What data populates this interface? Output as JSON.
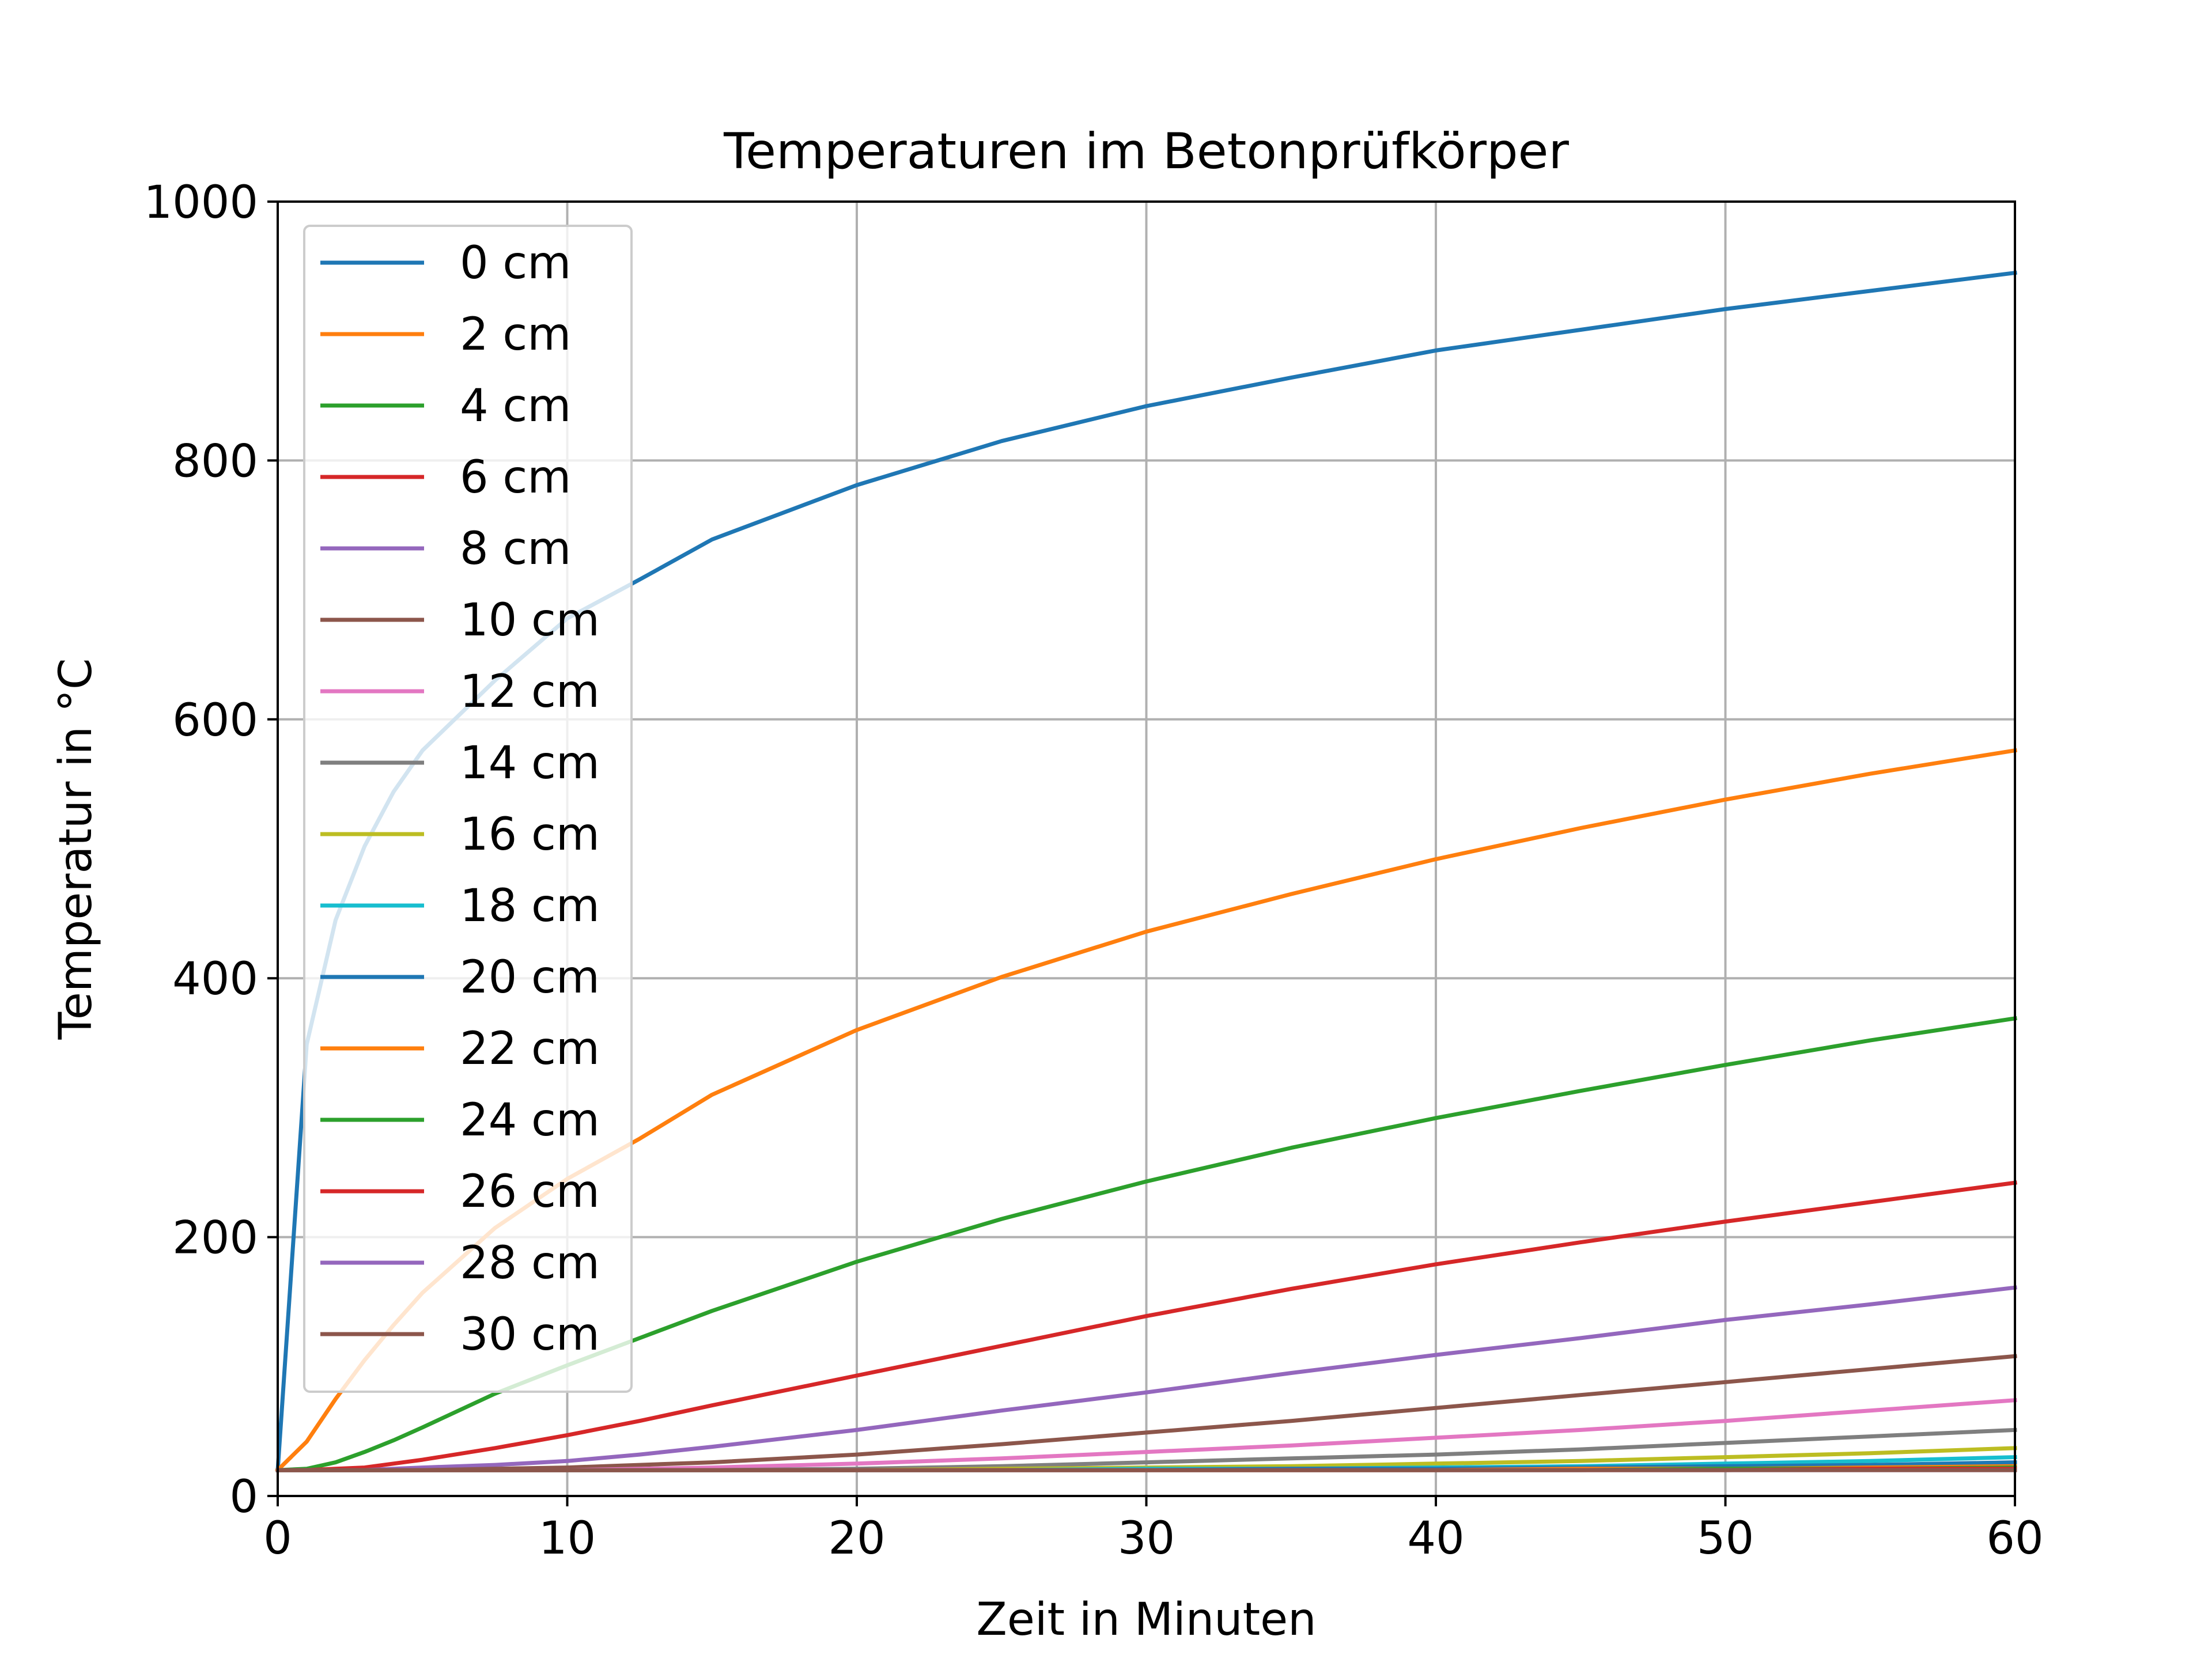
{
  "chart_data": {
    "type": "line",
    "title": "Temperaturen im Betonprüfkörper",
    "xlabel": "Zeit in Minuten",
    "ylabel": "Temperatur in °C",
    "xlim": [
      0,
      60
    ],
    "ylim": [
      0,
      1000
    ],
    "xticks": [
      0,
      10,
      20,
      30,
      40,
      50,
      60
    ],
    "xtick_labels": [
      "0",
      "10",
      "20",
      "30",
      "40",
      "50",
      "60"
    ],
    "yticks": [
      0,
      200,
      400,
      600,
      800,
      1000
    ],
    "ytick_labels": [
      "0",
      "200",
      "400",
      "600",
      "800",
      "1000"
    ],
    "grid": true,
    "legend_position": "upper-left",
    "x": [
      0,
      1,
      2,
      3,
      4,
      5,
      7.5,
      10,
      12.5,
      15,
      20,
      25,
      30,
      35,
      40,
      45,
      50,
      55,
      60
    ],
    "series": [
      {
        "name": "0 cm",
        "color": "#1f77b4",
        "values": [
          20,
          349,
          445,
          502,
          544,
          576,
          630,
          678,
          708,
          739,
          781,
          815,
          842,
          864,
          885,
          901,
          917,
          931,
          945
        ]
      },
      {
        "name": "2 cm",
        "color": "#ff7f0e",
        "values": [
          20,
          42,
          75,
          105,
          132,
          157,
          207,
          245,
          276,
          310,
          360,
          401,
          436,
          465,
          492,
          516,
          538,
          558,
          576
        ]
      },
      {
        "name": "4 cm",
        "color": "#2ca02c",
        "values": [
          20,
          21,
          26,
          34,
          43,
          53,
          79,
          101,
          122,
          143,
          181,
          214,
          243,
          269,
          292,
          313,
          333,
          352,
          369
        ]
      },
      {
        "name": "6 cm",
        "color": "#d62728",
        "values": [
          20,
          20,
          21,
          22,
          25,
          28,
          37,
          47,
          58,
          70,
          93,
          116,
          139,
          160,
          179,
          196,
          212,
          227,
          242
        ]
      },
      {
        "name": "8 cm",
        "color": "#9467bd",
        "values": [
          20,
          20,
          20,
          20,
          21,
          22,
          24,
          27,
          32,
          38,
          51,
          66,
          80,
          95,
          109,
          122,
          136,
          148,
          161
        ]
      },
      {
        "name": "10 cm",
        "color": "#8c564b",
        "values": [
          20,
          20,
          20,
          20,
          20,
          20,
          21,
          22,
          24,
          26,
          32,
          40,
          49,
          58,
          68,
          78,
          88,
          98,
          108
        ]
      },
      {
        "name": "12 cm",
        "color": "#e377c2",
        "values": [
          20,
          20,
          20,
          20,
          20,
          20,
          20,
          20,
          21,
          22,
          25,
          29,
          34,
          39,
          45,
          51,
          58,
          66,
          74
        ]
      },
      {
        "name": "14 cm",
        "color": "#7f7f7f",
        "values": [
          20,
          20,
          20,
          20,
          20,
          20,
          20,
          20,
          20,
          20,
          21,
          23,
          26,
          29,
          32,
          36,
          41,
          46,
          51
        ]
      },
      {
        "name": "16 cm",
        "color": "#bcbd22",
        "values": [
          20,
          20,
          20,
          20,
          20,
          20,
          20,
          20,
          20,
          20,
          20,
          21,
          22,
          23,
          25,
          27,
          30,
          33,
          37
        ]
      },
      {
        "name": "18 cm",
        "color": "#17becf",
        "values": [
          20,
          20,
          20,
          20,
          20,
          20,
          20,
          20,
          20,
          20,
          20,
          20,
          21,
          21,
          22,
          23,
          25,
          27,
          30
        ]
      },
      {
        "name": "20 cm",
        "color": "#1f77b4",
        "values": [
          20,
          20,
          20,
          20,
          20,
          20,
          20,
          20,
          20,
          20,
          20,
          20,
          20,
          21,
          21,
          22,
          23,
          24,
          26
        ]
      },
      {
        "name": "22 cm",
        "color": "#ff7f0e",
        "values": [
          20,
          20,
          20,
          20,
          20,
          20,
          20,
          20,
          20,
          20,
          20,
          20,
          20,
          20,
          20,
          21,
          21,
          22,
          23
        ]
      },
      {
        "name": "24 cm",
        "color": "#2ca02c",
        "values": [
          20,
          20,
          20,
          20,
          20,
          20,
          20,
          20,
          20,
          20,
          20,
          20,
          20,
          20,
          20,
          20,
          21,
          21,
          22
        ]
      },
      {
        "name": "26 cm",
        "color": "#d62728",
        "values": [
          20,
          20,
          20,
          20,
          20,
          20,
          20,
          20,
          20,
          20,
          20,
          20,
          20,
          20,
          20,
          20,
          20,
          21,
          21
        ]
      },
      {
        "name": "28 cm",
        "color": "#9467bd",
        "values": [
          20,
          20,
          20,
          20,
          20,
          20,
          20,
          20,
          20,
          20,
          20,
          20,
          20,
          20,
          20,
          20,
          20,
          20,
          20
        ]
      },
      {
        "name": "30 cm",
        "color": "#8c564b",
        "values": [
          20,
          20,
          20,
          20,
          20,
          20,
          20,
          20,
          20,
          20,
          20,
          20,
          20,
          20,
          20,
          20,
          20,
          20,
          20
        ]
      }
    ]
  }
}
